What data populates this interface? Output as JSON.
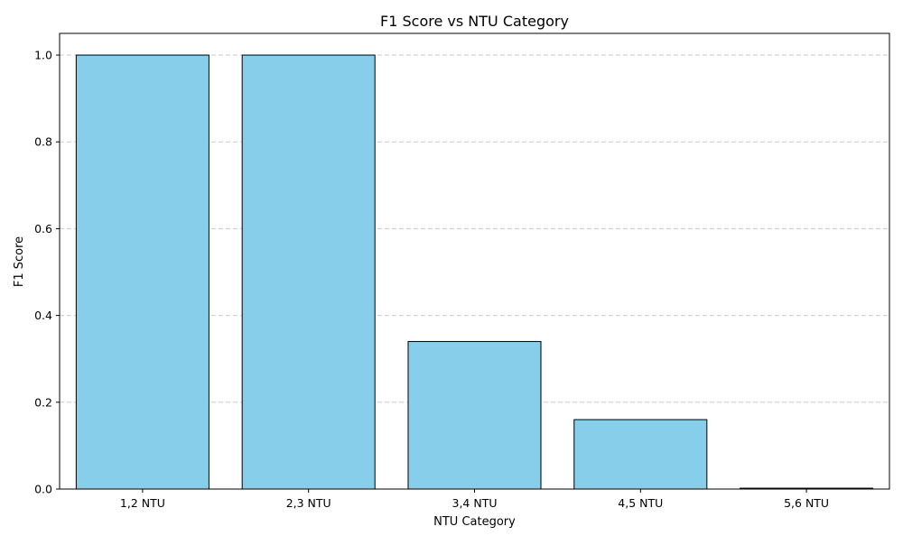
{
  "chart_data": {
    "type": "bar",
    "title": "F1 Score vs NTU Category",
    "xlabel": "NTU Category",
    "ylabel": "F1 Score",
    "categories": [
      "1,2 NTU",
      "2,3 NTU",
      "3,4 NTU",
      "4,5 NTU",
      "5,6 NTU"
    ],
    "values": [
      1.0,
      1.0,
      0.34,
      0.16,
      0.002
    ],
    "ylim": [
      0,
      1.05
    ],
    "yticks": [
      "0.0",
      "0.2",
      "0.4",
      "0.6",
      "0.8",
      "1.0"
    ],
    "grid": "y-dashed",
    "legend": "none",
    "colors": {
      "bar_fill": "#87ceeb",
      "bar_edge": "#000000",
      "grid": "#c8c8c8"
    }
  }
}
